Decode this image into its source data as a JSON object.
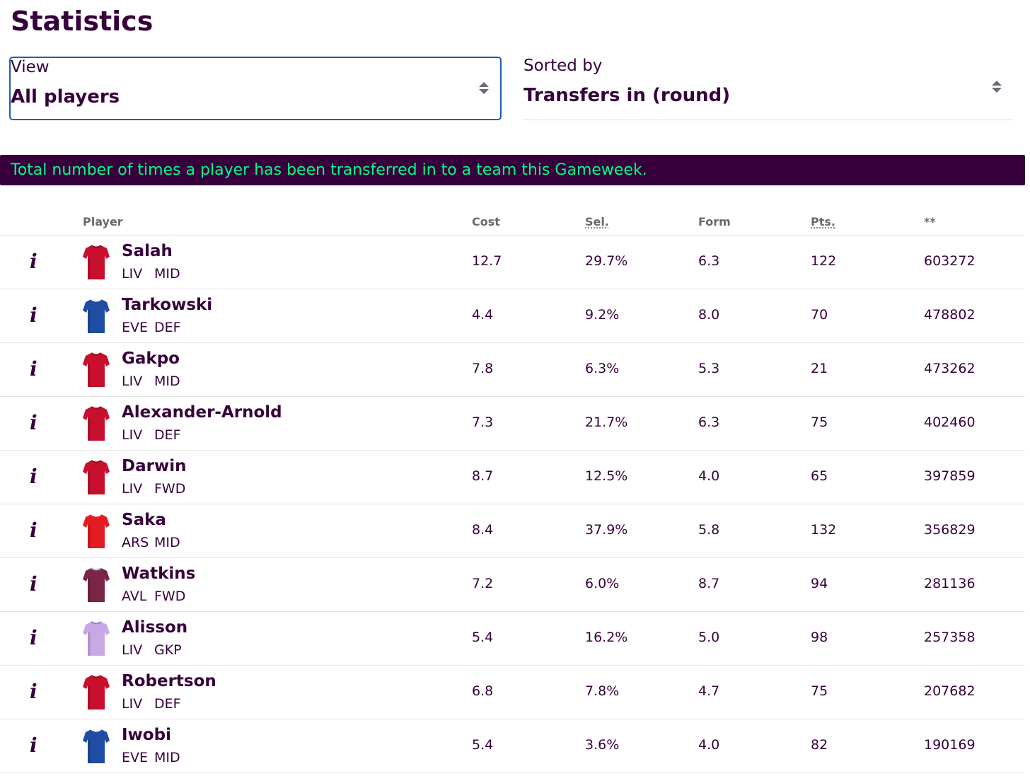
{
  "page": {
    "title": "Statistics"
  },
  "filters": {
    "view": {
      "label": "View",
      "value": "All players"
    },
    "sort": {
      "label": "Sorted by",
      "value": "Transfers in (round)"
    }
  },
  "banner": {
    "text": "Total number of times a player has been transferred in to a team this Gameweek."
  },
  "table": {
    "columns": {
      "player": "Player",
      "cost": "Cost",
      "selected": "Sel.",
      "form": "Form",
      "points": "Pts.",
      "transfers_in": "**"
    },
    "rows": [
      {
        "name": "Salah",
        "team": "LIV",
        "position": "MID",
        "cost": "12.7",
        "selected": "29.7%",
        "form": "6.3",
        "points": "122",
        "transfers_in": "603272",
        "shirt": "liverpool-home"
      },
      {
        "name": "Tarkowski",
        "team": "EVE",
        "position": "DEF",
        "cost": "4.4",
        "selected": "9.2%",
        "form": "8.0",
        "points": "70",
        "transfers_in": "478802",
        "shirt": "everton-home"
      },
      {
        "name": "Gakpo",
        "team": "LIV",
        "position": "MID",
        "cost": "7.8",
        "selected": "6.3%",
        "form": "5.3",
        "points": "21",
        "transfers_in": "473262",
        "shirt": "liverpool-home"
      },
      {
        "name": "Alexander-Arnold",
        "team": "LIV",
        "position": "DEF",
        "cost": "7.3",
        "selected": "21.7%",
        "form": "6.3",
        "points": "75",
        "transfers_in": "402460",
        "shirt": "liverpool-home"
      },
      {
        "name": "Darwin",
        "team": "LIV",
        "position": "FWD",
        "cost": "8.7",
        "selected": "12.5%",
        "form": "4.0",
        "points": "65",
        "transfers_in": "397859",
        "shirt": "liverpool-home"
      },
      {
        "name": "Saka",
        "team": "ARS",
        "position": "MID",
        "cost": "8.4",
        "selected": "37.9%",
        "form": "5.8",
        "points": "132",
        "transfers_in": "356829",
        "shirt": "arsenal-home"
      },
      {
        "name": "Watkins",
        "team": "AVL",
        "position": "FWD",
        "cost": "7.2",
        "selected": "6.0%",
        "form": "8.7",
        "points": "94",
        "transfers_in": "281136",
        "shirt": "aston-villa-home"
      },
      {
        "name": "Alisson",
        "team": "LIV",
        "position": "GKP",
        "cost": "5.4",
        "selected": "16.2%",
        "form": "5.0",
        "points": "98",
        "transfers_in": "257358",
        "shirt": "liverpool-gk"
      },
      {
        "name": "Robertson",
        "team": "LIV",
        "position": "DEF",
        "cost": "6.8",
        "selected": "7.8%",
        "form": "4.7",
        "points": "75",
        "transfers_in": "207682",
        "shirt": "liverpool-home"
      },
      {
        "name": "Iwobi",
        "team": "EVE",
        "position": "MID",
        "cost": "5.4",
        "selected": "3.6%",
        "form": "4.0",
        "points": "82",
        "transfers_in": "190169",
        "shirt": "everton-home"
      }
    ]
  },
  "icons": {
    "info": "i"
  },
  "colors": {
    "brand": "#37003c",
    "accent": "#00ff85",
    "focus_border": "#1a5fb4",
    "shirts": {
      "liverpool-home": {
        "body": "#c8102e",
        "trim": "#9a0a20"
      },
      "everton-home": {
        "body": "#1f4da3",
        "trim": "#ffffff"
      },
      "arsenal-home": {
        "body": "#e41b23",
        "trim": "#ffffff"
      },
      "aston-villa-home": {
        "body": "#7a2546",
        "trim": "#95bfe5"
      },
      "liverpool-gk": {
        "body": "#c9a8e6",
        "trim": "#9c7cc4"
      }
    }
  }
}
